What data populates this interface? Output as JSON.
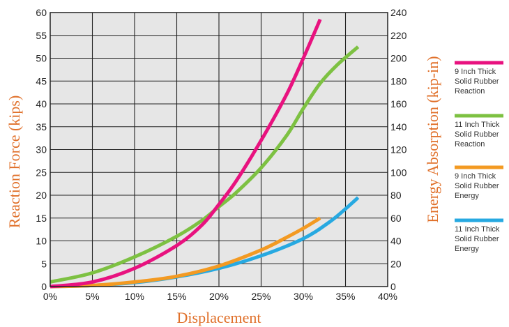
{
  "chart_data": {
    "type": "line",
    "title": "",
    "xlabel": "Displacement",
    "ylabel": "Reaction Force (kips)",
    "ylabel_right": "Energy Absorption (kip-in)",
    "xlim": [
      0,
      40
    ],
    "ylim": [
      0,
      60
    ],
    "ylim_right": [
      0,
      240
    ],
    "x_ticks": [
      "0%",
      "5%",
      "10%",
      "15%",
      "20%",
      "25%",
      "30%",
      "35%",
      "40%"
    ],
    "y_ticks_left": [
      "0",
      "5",
      "10",
      "15",
      "20",
      "25",
      "30",
      "35",
      "40",
      "45",
      "50",
      "55",
      "60"
    ],
    "y_ticks_right": [
      "0",
      "20",
      "40",
      "60",
      "80",
      "100",
      "120",
      "140",
      "160",
      "180",
      "200",
      "220",
      "240"
    ],
    "grid": true,
    "legend_position": "right",
    "series": [
      {
        "name": "9 Inch Thick Solid Rubber Reaction",
        "color": "#e8127f",
        "axis": "left",
        "x": [
          0,
          5,
          10,
          15,
          18,
          20,
          22,
          25,
          28,
          30,
          32
        ],
        "y": [
          0,
          1,
          4,
          9,
          13.5,
          18,
          23,
          32,
          42,
          50,
          58.5
        ]
      },
      {
        "name": "11 Inch Thick Solid Rubber Reaction",
        "color": "#7dc142",
        "axis": "left",
        "x": [
          0,
          5,
          10,
          15,
          18,
          20,
          22,
          25,
          28,
          30,
          32,
          34,
          36.5
        ],
        "y": [
          1,
          3,
          6.5,
          11,
          14.5,
          17.5,
          20.5,
          26,
          33,
          39,
          44.5,
          48.5,
          52.5
        ]
      },
      {
        "name": "9 Inch Thick Solid Rubber Energy",
        "color": "#f39a22",
        "axis": "right",
        "x": [
          0,
          5,
          10,
          15,
          20,
          25,
          28,
          30,
          32
        ],
        "y": [
          0,
          1,
          4,
          9,
          18,
          32,
          43,
          51,
          60
        ]
      },
      {
        "name": "11 Inch Thick Solid Rubber Energy",
        "color": "#27a9e1",
        "axis": "right",
        "x": [
          0,
          5,
          10,
          15,
          20,
          25,
          30,
          33,
          35,
          36.5
        ],
        "y": [
          0,
          1,
          3.5,
          8.5,
          16,
          27,
          42,
          56,
          68,
          78
        ]
      }
    ]
  }
}
